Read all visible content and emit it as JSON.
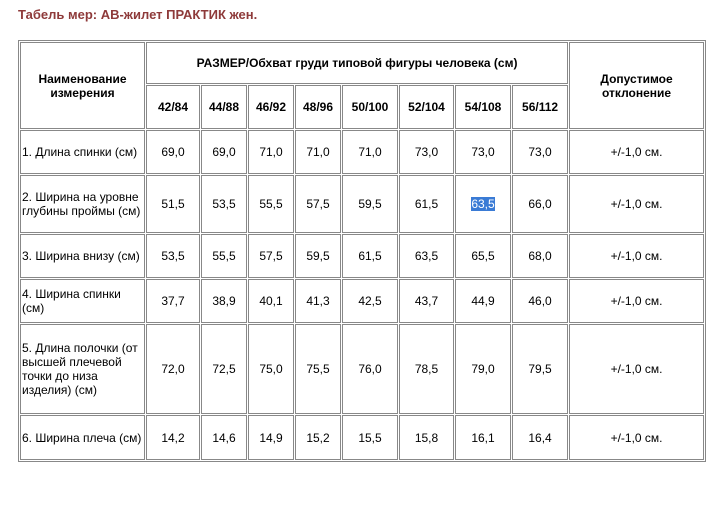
{
  "title": "Табель мер: АВ-жилет ПРАКТИК жен.",
  "table": {
    "name_header": "Наименование измерения",
    "size_header": "РАЗМЕР/Обхват груди типовой фигуры человека (см)",
    "tolerance_header": "Допустимое отклонение",
    "sizes": [
      "42/84",
      "44/88",
      "46/92",
      "48/96",
      "50/100",
      "52/104",
      "54/108",
      "56/112"
    ],
    "rows": [
      {
        "name": "1. Длина спинки (см)",
        "values": [
          "69,0",
          "69,0",
          "71,0",
          "71,0",
          "71,0",
          "73,0",
          "73,0",
          "73,0"
        ],
        "tolerance": "+/-1,0 см."
      },
      {
        "name": "2. Ширина на уровне глубины проймы (см)",
        "values": [
          "51,5",
          "53,5",
          "55,5",
          "57,5",
          "59,5",
          "61,5",
          "63,5",
          "66,0"
        ],
        "tolerance": "+/-1,0 см."
      },
      {
        "name": "3. Ширина внизу (см)",
        "values": [
          "53,5",
          "55,5",
          "57,5",
          "59,5",
          "61,5",
          "63,5",
          "65,5",
          "68,0"
        ],
        "tolerance": "+/-1,0 см."
      },
      {
        "name": "4. Ширина спинки (см)",
        "values": [
          "37,7",
          "38,9",
          "40,1",
          "41,3",
          "42,5",
          "43,7",
          "44,9",
          "46,0"
        ],
        "tolerance": "+/-1,0 см."
      },
      {
        "name": "5. Длина полочки  (от высшей плечевой точки до низа изделия) (см)",
        "values": [
          "72,0",
          "72,5",
          "75,0",
          "75,5",
          "76,0",
          "78,5",
          "79,0",
          "79,5"
        ],
        "tolerance": "+/-1,0 см."
      },
      {
        "name": "6. Ширина плеча (см)",
        "values": [
          "14,2",
          "14,6",
          "14,9",
          "15,2",
          "15,5",
          "15,8",
          "16,1",
          "16,4"
        ],
        "tolerance": "+/-1,0 см."
      }
    ]
  }
}
